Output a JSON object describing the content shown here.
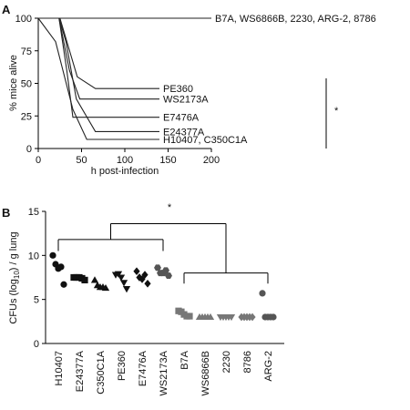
{
  "chart_data": [
    {
      "panel_label": "A",
      "type": "line",
      "step": true,
      "xlabel": "h post-infection",
      "ylabel": "% mice alive",
      "xlim": [
        0,
        200
      ],
      "ylim": [
        0,
        100
      ],
      "xticks": [
        "0",
        "50",
        "100",
        "150",
        "200"
      ],
      "yticks": [
        "0",
        "25",
        "50",
        "75",
        "100"
      ],
      "series": [
        {
          "name": "B7A, WS6866B, 2230, ARG-2, 8786",
          "x": [
            0,
            200
          ],
          "y": [
            100,
            100
          ]
        },
        {
          "name": "PE360",
          "x": [
            0,
            25,
            45,
            66,
            140
          ],
          "y": [
            100,
            100,
            55,
            46,
            46
          ]
        },
        {
          "name": "WS2173A",
          "x": [
            0,
            24,
            36,
            48,
            140
          ],
          "y": [
            100,
            100,
            60,
            38,
            38
          ]
        },
        {
          "name": "E7476A",
          "x": [
            0,
            24,
            33,
            40,
            140
          ],
          "y": [
            100,
            100,
            60,
            24,
            24
          ]
        },
        {
          "name": "E24377A",
          "x": [
            0,
            24,
            32,
            44,
            66,
            140
          ],
          "y": [
            100,
            100,
            82,
            38,
            13,
            13
          ]
        },
        {
          "name": "H10407, C350C1A",
          "x": [
            0,
            20,
            40,
            56,
            140
          ],
          "y": [
            100,
            82,
            30,
            7,
            7
          ]
        }
      ],
      "significance": "*"
    },
    {
      "panel_label": "B",
      "type": "scatter",
      "ylabel": "CFUs (log10) / g lung",
      "ylim": [
        0,
        15
      ],
      "yticks": [
        "0",
        "5",
        "10",
        "15"
      ],
      "categories": [
        "H10407",
        "E24377A",
        "C350C1A",
        "PE360",
        "E7476A",
        "WS2173A",
        "B7A",
        "WS6866B",
        "2230",
        "8786",
        "ARG-2"
      ],
      "markers": [
        "circle",
        "square",
        "triangle-up",
        "triangle-down",
        "diamond",
        "hexagon",
        "square",
        "triangle-up",
        "triangle-down",
        "diamond",
        "circle"
      ],
      "fills": [
        "#111111",
        "#111111",
        "#111111",
        "#111111",
        "#111111",
        "#555555",
        "#777777",
        "#777777",
        "#777777",
        "#777777",
        "#555555"
      ],
      "values": [
        [
          10.0,
          9.0,
          8.5,
          8.7,
          6.7
        ],
        [
          7.5,
          7.5,
          7.5,
          7.4,
          7.2
        ],
        [
          7.2,
          6.6,
          6.4,
          6.4,
          6.3
        ],
        [
          7.8,
          7.9,
          7.5,
          6.9,
          6.2
        ],
        [
          8.2,
          7.5,
          7.3,
          7.8,
          6.8
        ],
        [
          8.6,
          8.0,
          8.0,
          8.3,
          7.7
        ],
        [
          3.7,
          3.6,
          3.3,
          3.1,
          3.1
        ],
        [
          3.0,
          3.0,
          3.0,
          3.0,
          3.0
        ],
        [
          3.0,
          3.0,
          3.0,
          3.0,
          3.0
        ],
        [
          3.0,
          3.0,
          3.0,
          3.0,
          3.0
        ],
        [
          5.7,
          3.0,
          3.0,
          3.0,
          3.0
        ]
      ],
      "significance": "*"
    }
  ]
}
